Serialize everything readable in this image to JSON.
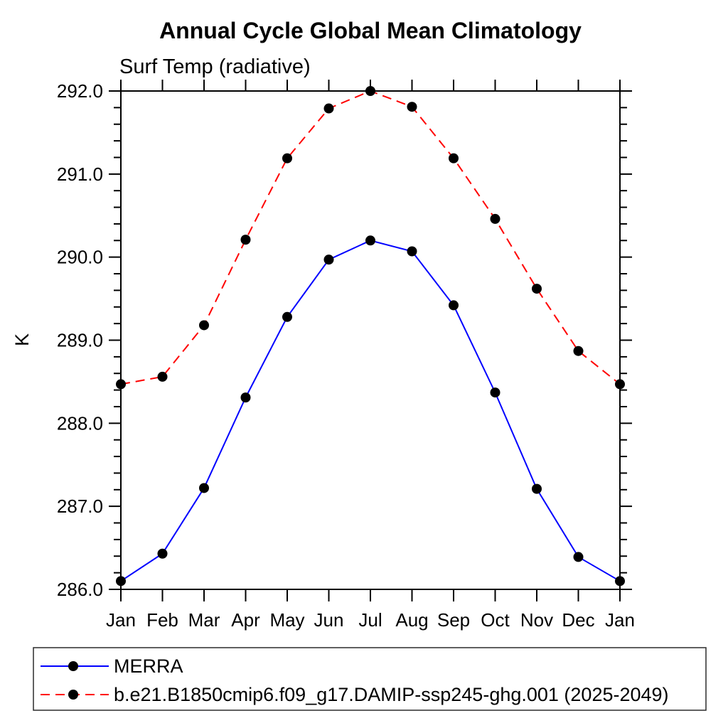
{
  "chart_data": {
    "type": "line",
    "title": "Annual Cycle Global Mean Climatology",
    "subtitle": "Surf Temp (radiative)",
    "xlabel": "",
    "ylabel": "K",
    "x_categories": [
      "Jan",
      "Feb",
      "Mar",
      "Apr",
      "May",
      "Jun",
      "Jul",
      "Aug",
      "Sep",
      "Oct",
      "Nov",
      "Dec",
      "Jan"
    ],
    "ylim": [
      286.0,
      292.0
    ],
    "y_major_step": 1.0,
    "y_minor_step": 0.2,
    "y_tick_labels": [
      "286.0",
      "287.0",
      "288.0",
      "289.0",
      "290.0",
      "291.0",
      "292.0"
    ],
    "grid": false,
    "legend_position": "bottom-left-box",
    "axis_color": "#000000",
    "marker_shape": "filled-circle",
    "series": [
      {
        "name": "MERRA",
        "color": "#0000ff",
        "line_style": "solid",
        "marker_color": "#000000",
        "values": [
          286.1,
          286.43,
          287.22,
          288.31,
          289.28,
          289.97,
          290.2,
          290.07,
          289.42,
          288.37,
          287.21,
          286.39,
          286.1
        ]
      },
      {
        "name": "b.e21.B1850cmip6.f09_g17.DAMIP-ssp245-ghg.001 (2025-2049)",
        "color": "#ff0000",
        "line_style": "dashed",
        "marker_color": "#000000",
        "values": [
          288.47,
          288.56,
          289.18,
          290.21,
          291.19,
          291.79,
          292.0,
          291.81,
          291.19,
          290.46,
          289.62,
          288.87,
          288.47
        ]
      }
    ]
  }
}
